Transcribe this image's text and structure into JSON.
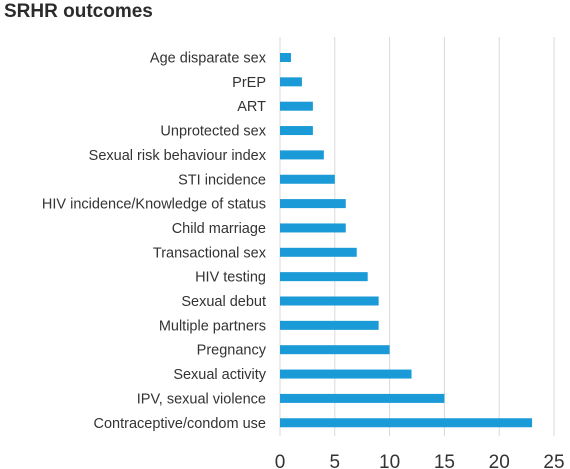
{
  "chart_data": {
    "type": "bar",
    "orientation": "horizontal",
    "title": "SRHR outcomes",
    "categories": [
      "Age disparate sex",
      "PrEP",
      "ART",
      "Unprotected sex",
      "Sexual risk behaviour index",
      "STI incidence",
      "HIV incidence/Knowledge of status",
      "Child marriage",
      "Transactional sex",
      "HIV testing",
      "Sexual debut",
      "Multiple partners",
      "Pregnancy",
      "Sexual activity",
      "IPV, sexual violence",
      "Contraceptive/condom use"
    ],
    "values": [
      1,
      2,
      3,
      3,
      4,
      5,
      6,
      6,
      7,
      8,
      9,
      9,
      10,
      12,
      15,
      23
    ],
    "xlim": [
      0,
      25
    ],
    "xticks": [
      "0",
      "5",
      "10",
      "15",
      "20",
      "25"
    ],
    "xlabel": "",
    "ylabel": "",
    "grid": "vertical",
    "bar_color": "#1a9ad6",
    "grid_color": "#d9d9d9"
  }
}
